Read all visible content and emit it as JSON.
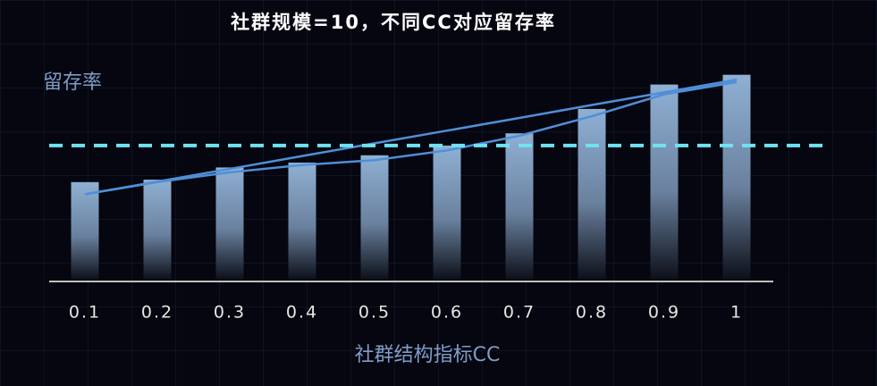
{
  "chart_data": {
    "type": "bar",
    "title": "社群规模=10，不同CC对应留存率",
    "y_label": "留存率",
    "x_label": "社群结构指标CC",
    "categories": [
      "0.1",
      "0.2",
      "0.3",
      "0.4",
      "0.5",
      "0.6",
      "0.7",
      "0.8",
      "0.9",
      "1"
    ],
    "values": [
      40,
      41,
      46,
      48,
      51,
      55,
      60,
      70,
      80,
      84
    ],
    "color": "#8fb0d4",
    "ylim": [
      0,
      100
    ],
    "reference_line": {
      "value": 55,
      "color": "#6fe3f0"
    },
    "lines": [
      {
        "color": "#4f8fd8",
        "values": [
          35,
          40.2,
          45.4,
          50.7,
          55.9,
          61.1,
          66.3,
          71.6,
          76.8,
          82
        ]
      },
      {
        "color": "#4f8fd8",
        "values": [
          35,
          40,
          44,
          47,
          49,
          53,
          59,
          67,
          76,
          81
        ]
      }
    ]
  }
}
